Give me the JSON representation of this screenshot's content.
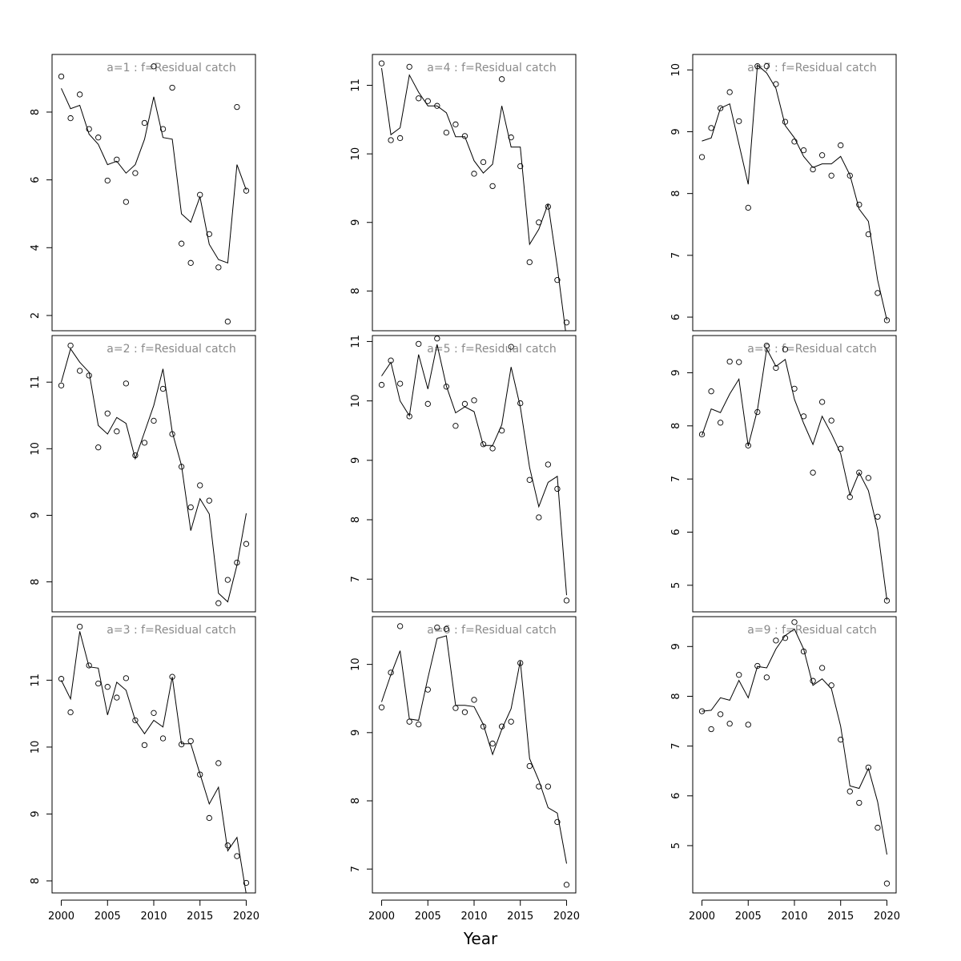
{
  "figure": {
    "xlabel": "Year",
    "layout": "3x3, column-major",
    "x_ticks": [
      2000,
      2005,
      2010,
      2015,
      2020
    ],
    "x_tick_labels": [
      "2000",
      "2005",
      "2010",
      "2015",
      "2020"
    ],
    "x_range": [
      1999,
      2021
    ],
    "colors": {
      "line": "#000000",
      "points": "#000000",
      "title": "#8a8a8a",
      "axes": "#000000",
      "background": "#ffffff"
    }
  },
  "chart_data": [
    {
      "type": "scatter+line",
      "title": "a=1  :  f=Residual catch",
      "x": [
        2000,
        2001,
        2002,
        2003,
        2004,
        2005,
        2006,
        2007,
        2008,
        2009,
        2010,
        2011,
        2012,
        2013,
        2014,
        2015,
        2016,
        2017,
        2018,
        2019,
        2020
      ],
      "observed": [
        9.05,
        7.82,
        8.52,
        7.5,
        7.25,
        5.98,
        6.6,
        5.35,
        6.2,
        7.68,
        9.35,
        7.5,
        8.72,
        4.12,
        3.55,
        5.56,
        4.4,
        3.42,
        1.82,
        8.15,
        5.68
      ],
      "fitted": [
        8.7,
        8.1,
        8.2,
        7.35,
        7.05,
        6.45,
        6.55,
        6.2,
        6.45,
        7.2,
        8.45,
        7.25,
        7.2,
        5.0,
        4.75,
        5.5,
        4.1,
        3.65,
        3.55,
        6.45,
        5.7
      ],
      "ylim": [
        1.55,
        9.7
      ],
      "yticks": [
        2,
        4,
        6,
        8
      ],
      "ytick_labels": [
        "2",
        "4",
        "6",
        "8"
      ]
    },
    {
      "type": "scatter+line",
      "title": "a=2  :  f=Residual catch",
      "x": [
        2000,
        2001,
        2002,
        2003,
        2004,
        2005,
        2006,
        2007,
        2008,
        2009,
        2010,
        2011,
        2012,
        2013,
        2014,
        2015,
        2016,
        2017,
        2018,
        2019,
        2020
      ],
      "observed": [
        10.95,
        11.55,
        11.17,
        11.1,
        10.02,
        10.53,
        10.26,
        10.98,
        9.9,
        10.09,
        10.42,
        10.9,
        10.22,
        9.73,
        9.12,
        9.45,
        9.22,
        7.68,
        8.03,
        8.29,
        8.57
      ],
      "fitted": [
        11.0,
        11.5,
        11.3,
        11.15,
        10.35,
        10.22,
        10.47,
        10.38,
        9.85,
        10.25,
        10.65,
        11.2,
        10.25,
        9.75,
        8.77,
        9.25,
        9.02,
        7.83,
        7.7,
        8.25,
        9.03
      ],
      "ylim": [
        7.55,
        11.7
      ],
      "yticks": [
        8,
        9,
        10,
        11
      ],
      "ytick_labels": [
        "8",
        "9",
        "10",
        "11"
      ]
    },
    {
      "type": "scatter+line",
      "title": "a=3  :  f=Residual catch",
      "x": [
        2000,
        2001,
        2002,
        2003,
        2004,
        2005,
        2006,
        2007,
        2008,
        2009,
        2010,
        2011,
        2012,
        2013,
        2014,
        2015,
        2016,
        2017,
        2018,
        2019,
        2020
      ],
      "observed": [
        11.02,
        10.52,
        11.8,
        11.22,
        10.95,
        10.9,
        10.74,
        11.03,
        10.4,
        10.03,
        10.51,
        10.13,
        11.05,
        10.04,
        10.09,
        9.59,
        8.94,
        9.76,
        8.53,
        8.37,
        7.97
      ],
      "fitted": [
        11.0,
        10.72,
        11.73,
        11.2,
        11.18,
        10.48,
        10.97,
        10.85,
        10.4,
        10.2,
        10.4,
        10.3,
        11.05,
        10.05,
        10.05,
        9.6,
        9.15,
        9.4,
        8.45,
        8.65,
        7.8
      ],
      "ylim": [
        7.82,
        11.95
      ],
      "yticks": [
        8,
        9,
        10,
        11
      ],
      "ytick_labels": [
        "8",
        "9",
        "10",
        "11"
      ]
    },
    {
      "type": "scatter+line",
      "title": "a=4  :  f=Residual catch",
      "x": [
        2000,
        2001,
        2002,
        2003,
        2004,
        2005,
        2006,
        2007,
        2008,
        2009,
        2010,
        2011,
        2012,
        2013,
        2014,
        2015,
        2016,
        2017,
        2018,
        2019,
        2020
      ],
      "observed": [
        11.32,
        10.2,
        10.23,
        11.27,
        10.81,
        10.77,
        10.7,
        10.31,
        10.43,
        10.26,
        9.71,
        9.88,
        9.53,
        11.09,
        10.24,
        9.82,
        8.42,
        9.0,
        9.23,
        8.16,
        7.54
      ],
      "fitted": [
        11.25,
        10.28,
        10.38,
        11.15,
        10.9,
        10.7,
        10.7,
        10.6,
        10.25,
        10.25,
        9.9,
        9.72,
        9.85,
        10.7,
        10.1,
        10.1,
        8.68,
        8.9,
        9.27,
        8.35,
        7.3
      ],
      "ylim": [
        7.42,
        11.45
      ],
      "yticks": [
        8,
        9,
        10,
        11
      ],
      "ytick_labels": [
        "8",
        "9",
        "10",
        "11"
      ]
    },
    {
      "type": "scatter+line",
      "title": "a=5  :  f=Residual catch",
      "x": [
        2000,
        2001,
        2002,
        2003,
        2004,
        2005,
        2006,
        2007,
        2008,
        2009,
        2010,
        2011,
        2012,
        2013,
        2014,
        2015,
        2016,
        2017,
        2018,
        2019,
        2020
      ],
      "observed": [
        10.27,
        10.68,
        10.29,
        9.74,
        10.96,
        9.95,
        11.05,
        10.24,
        9.58,
        9.95,
        10.01,
        9.27,
        9.2,
        9.5,
        10.91,
        9.96,
        8.67,
        8.04,
        8.93,
        8.52,
        6.64
      ],
      "fitted": [
        10.42,
        10.65,
        10.0,
        9.75,
        10.78,
        10.2,
        10.95,
        10.25,
        9.8,
        9.9,
        9.82,
        9.25,
        9.25,
        9.6,
        10.57,
        9.9,
        8.88,
        8.22,
        8.63,
        8.73,
        6.73
      ],
      "ylim": [
        6.45,
        11.1
      ],
      "yticks": [
        7,
        8,
        9,
        10,
        11
      ],
      "ytick_labels": [
        "7",
        "8",
        "9",
        "10",
        "11"
      ]
    },
    {
      "type": "scatter+line",
      "title": "a=6  :  f=Residual catch",
      "x": [
        2000,
        2001,
        2002,
        2003,
        2004,
        2005,
        2006,
        2007,
        2008,
        2009,
        2010,
        2011,
        2012,
        2013,
        2014,
        2015,
        2016,
        2017,
        2018,
        2019,
        2020
      ],
      "observed": [
        9.37,
        9.88,
        10.56,
        9.16,
        9.12,
        9.63,
        10.54,
        10.52,
        9.36,
        9.3,
        9.48,
        9.09,
        8.84,
        9.09,
        9.16,
        10.02,
        8.51,
        8.21,
        8.21,
        7.69,
        6.77
      ],
      "fitted": [
        9.45,
        9.85,
        10.2,
        9.2,
        9.18,
        9.8,
        10.38,
        10.42,
        9.4,
        9.4,
        9.38,
        9.12,
        8.68,
        9.05,
        9.35,
        10.05,
        8.62,
        8.3,
        7.9,
        7.82,
        7.08
      ],
      "ylim": [
        6.65,
        10.7
      ],
      "yticks": [
        7,
        8,
        9,
        10
      ],
      "ytick_labels": [
        "7",
        "8",
        "9",
        "10"
      ]
    },
    {
      "type": "scatter+line",
      "title": "a=7  :  f=Residual catch",
      "x": [
        2000,
        2001,
        2002,
        2003,
        2004,
        2005,
        2006,
        2007,
        2008,
        2009,
        2010,
        2011,
        2012,
        2013,
        2014,
        2015,
        2016,
        2017,
        2018,
        2019,
        2020
      ],
      "observed": [
        8.59,
        9.06,
        9.38,
        9.64,
        9.17,
        7.77,
        10.06,
        10.06,
        9.77,
        9.16,
        8.84,
        8.7,
        8.39,
        8.62,
        8.29,
        8.78,
        8.29,
        7.82,
        7.34,
        6.39,
        5.95
      ],
      "fitted": [
        8.85,
        8.9,
        9.38,
        9.45,
        8.8,
        8.15,
        10.08,
        9.95,
        9.7,
        9.1,
        8.9,
        8.6,
        8.42,
        8.48,
        8.48,
        8.6,
        8.3,
        7.75,
        7.55,
        6.6,
        5.95
      ],
      "ylim": [
        5.78,
        10.25
      ],
      "yticks": [
        6,
        7,
        8,
        9,
        10
      ],
      "ytick_labels": [
        "6",
        "7",
        "8",
        "9",
        "10"
      ]
    },
    {
      "type": "scatter+line",
      "title": "a=8  :  f=Residual catch",
      "x": [
        2000,
        2001,
        2002,
        2003,
        2004,
        2005,
        2006,
        2007,
        2008,
        2009,
        2010,
        2011,
        2012,
        2013,
        2014,
        2015,
        2016,
        2017,
        2018,
        2019,
        2020
      ],
      "observed": [
        7.84,
        8.65,
        8.06,
        9.21,
        9.2,
        7.63,
        8.26,
        9.51,
        9.09,
        9.44,
        8.7,
        8.18,
        7.12,
        8.45,
        8.1,
        7.57,
        6.66,
        7.12,
        7.02,
        6.29,
        4.71
      ],
      "fitted": [
        7.82,
        8.32,
        8.25,
        8.6,
        8.88,
        7.62,
        8.3,
        9.45,
        9.12,
        9.25,
        8.5,
        8.05,
        7.65,
        8.18,
        7.85,
        7.48,
        6.7,
        7.12,
        6.78,
        6.05,
        4.72
      ],
      "ylim": [
        4.5,
        9.7
      ],
      "yticks": [
        5,
        6,
        7,
        8,
        9
      ],
      "ytick_labels": [
        "5",
        "6",
        "7",
        "8",
        "9"
      ]
    },
    {
      "type": "scatter+line",
      "title": "a=9  :  f=Residual catch",
      "x": [
        2000,
        2001,
        2002,
        2003,
        2004,
        2005,
        2006,
        2007,
        2008,
        2009,
        2010,
        2011,
        2012,
        2013,
        2014,
        2015,
        2016,
        2017,
        2018,
        2019,
        2020
      ],
      "observed": [
        7.7,
        7.34,
        7.64,
        7.45,
        8.43,
        7.43,
        8.61,
        8.38,
        9.12,
        9.17,
        9.49,
        8.9,
        8.31,
        8.57,
        8.22,
        7.13,
        6.09,
        5.86,
        6.57,
        5.36,
        4.24
      ],
      "fitted": [
        7.7,
        7.72,
        7.97,
        7.92,
        8.32,
        7.97,
        8.6,
        8.57,
        8.95,
        9.22,
        9.35,
        8.95,
        8.22,
        8.35,
        8.15,
        7.4,
        6.2,
        6.15,
        6.55,
        5.88,
        4.82
      ],
      "ylim": [
        4.05,
        9.6
      ],
      "yticks": [
        5,
        6,
        7,
        8,
        9
      ],
      "ytick_labels": [
        "5",
        "6",
        "7",
        "8",
        "9"
      ]
    }
  ]
}
